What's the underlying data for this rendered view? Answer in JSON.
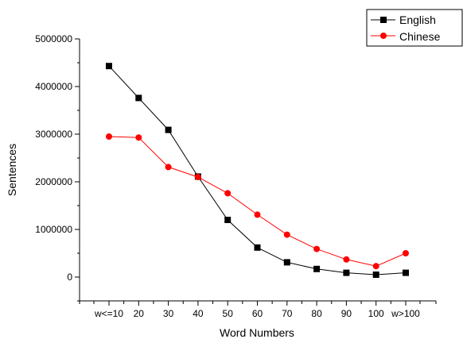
{
  "chart_data": {
    "type": "line",
    "categories": [
      "w<=10",
      "20",
      "30",
      "40",
      "50",
      "60",
      "70",
      "80",
      "90",
      "100",
      "w>100"
    ],
    "series": [
      {
        "name": "English",
        "color": "#000000",
        "marker": "square",
        "values": [
          4430000,
          3760000,
          3090000,
          2110000,
          1200000,
          620000,
          310000,
          170000,
          90000,
          50000,
          90000
        ]
      },
      {
        "name": "Chinese",
        "color": "#ff0000",
        "marker": "circle",
        "values": [
          2950000,
          2930000,
          2310000,
          2100000,
          1760000,
          1310000,
          890000,
          590000,
          370000,
          230000,
          500000
        ]
      }
    ],
    "title": "",
    "xlabel": "Word Numbers",
    "ylabel": "Sentences",
    "ylim": [
      -500000,
      5000000
    ],
    "yticks": [
      0,
      1000000,
      2000000,
      3000000,
      4000000,
      5000000
    ],
    "ytick_labels": [
      "0",
      "1000000",
      "2000000",
      "3000000",
      "4000000",
      "5000000"
    ],
    "grid": false,
    "legend_position": "top-right"
  }
}
